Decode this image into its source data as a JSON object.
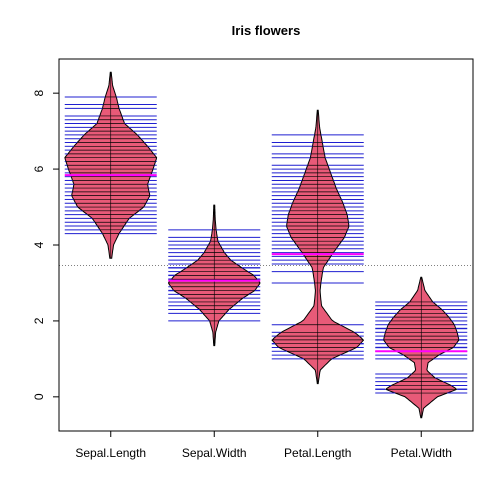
{
  "chart_data": {
    "type": "beanplot",
    "title": "Iris flowers",
    "xlabel": "",
    "ylabel": "",
    "categories": [
      "Sepal.Length",
      "Sepal.Width",
      "Petal.Length",
      "Petal.Width"
    ],
    "ylim": [
      -0.9,
      8.9
    ],
    "yticks": [
      0,
      2,
      4,
      6,
      8
    ],
    "grid": false,
    "legend": "none",
    "overall_mean": 3.46,
    "colors": {
      "bean_fill": "#e85a78",
      "bean_outline": "#000000",
      "beanline": "#1f1fd0",
      "mean_line": "#ff00ff",
      "overall_line": "#808080"
    },
    "beans": [
      {
        "name": "Sepal.Length",
        "mean": 5.84,
        "range": [
          3.65,
          8.55
        ],
        "density": [
          [
            3.65,
            0.02
          ],
          [
            4.0,
            0.06
          ],
          [
            4.3,
            0.18
          ],
          [
            4.7,
            0.4
          ],
          [
            5.0,
            0.72
          ],
          [
            5.3,
            0.85
          ],
          [
            5.6,
            0.8
          ],
          [
            6.0,
            0.92
          ],
          [
            6.3,
            1.0
          ],
          [
            6.6,
            0.8
          ],
          [
            6.9,
            0.58
          ],
          [
            7.2,
            0.3
          ],
          [
            7.6,
            0.18
          ],
          [
            7.9,
            0.12
          ],
          [
            8.2,
            0.04
          ],
          [
            8.55,
            0.01
          ]
        ],
        "values": [
          4.3,
          4.4,
          4.5,
          4.6,
          4.7,
          4.8,
          4.9,
          5.0,
          5.1,
          5.2,
          5.3,
          5.4,
          5.5,
          5.6,
          5.7,
          5.8,
          5.9,
          6.0,
          6.1,
          6.2,
          6.3,
          6.4,
          6.5,
          6.6,
          6.7,
          6.8,
          6.9,
          7.0,
          7.1,
          7.2,
          7.3,
          7.4,
          7.6,
          7.7,
          7.9
        ],
        "counts": [
          1,
          3,
          1,
          4,
          2,
          5,
          6,
          10,
          9,
          4,
          1,
          6,
          7,
          6,
          8,
          7,
          3,
          6,
          6,
          4,
          9,
          7,
          5,
          2,
          8,
          3,
          4,
          1,
          1,
          3,
          1,
          1,
          1,
          4,
          1
        ]
      },
      {
        "name": "Sepal.Width",
        "mean": 3.06,
        "range": [
          1.35,
          5.05
        ],
        "density": [
          [
            1.35,
            0.01
          ],
          [
            1.7,
            0.03
          ],
          [
            2.0,
            0.1
          ],
          [
            2.3,
            0.32
          ],
          [
            2.6,
            0.62
          ],
          [
            2.8,
            0.88
          ],
          [
            3.0,
            1.0
          ],
          [
            3.2,
            0.86
          ],
          [
            3.4,
            0.6
          ],
          [
            3.6,
            0.36
          ],
          [
            3.8,
            0.22
          ],
          [
            4.1,
            0.08
          ],
          [
            4.4,
            0.04
          ],
          [
            4.7,
            0.02
          ],
          [
            5.05,
            0.01
          ]
        ],
        "values": [
          2.0,
          2.2,
          2.3,
          2.4,
          2.5,
          2.6,
          2.7,
          2.8,
          2.9,
          3.0,
          3.1,
          3.2,
          3.3,
          3.4,
          3.5,
          3.6,
          3.7,
          3.8,
          3.9,
          4.0,
          4.1,
          4.2,
          4.4
        ],
        "counts": [
          1,
          3,
          4,
          3,
          8,
          5,
          9,
          14,
          10,
          26,
          11,
          13,
          6,
          12,
          6,
          4,
          3,
          6,
          2,
          1,
          1,
          1,
          1
        ]
      },
      {
        "name": "Petal.Length",
        "mean": 3.76,
        "range": [
          0.35,
          7.55
        ],
        "density": [
          [
            0.35,
            0.01
          ],
          [
            0.7,
            0.05
          ],
          [
            1.0,
            0.3
          ],
          [
            1.3,
            0.85
          ],
          [
            1.5,
            1.0
          ],
          [
            1.7,
            0.8
          ],
          [
            2.0,
            0.32
          ],
          [
            2.4,
            0.08
          ],
          [
            2.8,
            0.05
          ],
          [
            3.1,
            0.08
          ],
          [
            3.4,
            0.12
          ],
          [
            3.8,
            0.34
          ],
          [
            4.2,
            0.58
          ],
          [
            4.5,
            0.68
          ],
          [
            4.8,
            0.64
          ],
          [
            5.1,
            0.55
          ],
          [
            5.5,
            0.4
          ],
          [
            5.9,
            0.28
          ],
          [
            6.3,
            0.16
          ],
          [
            6.7,
            0.1
          ],
          [
            7.1,
            0.04
          ],
          [
            7.55,
            0.01
          ]
        ],
        "values": [
          1.0,
          1.1,
          1.2,
          1.3,
          1.4,
          1.5,
          1.6,
          1.7,
          1.9,
          3.0,
          3.3,
          3.5,
          3.6,
          3.7,
          3.8,
          3.9,
          4.0,
          4.1,
          4.2,
          4.3,
          4.4,
          4.5,
          4.6,
          4.7,
          4.8,
          4.9,
          5.0,
          5.1,
          5.2,
          5.3,
          5.4,
          5.5,
          5.6,
          5.7,
          5.8,
          5.9,
          6.0,
          6.1,
          6.3,
          6.4,
          6.6,
          6.7,
          6.9
        ],
        "counts": [
          1,
          1,
          2,
          7,
          13,
          13,
          7,
          4,
          2,
          1,
          2,
          2,
          1,
          1,
          1,
          3,
          5,
          3,
          4,
          2,
          4,
          8,
          3,
          5,
          4,
          5,
          4,
          8,
          2,
          2,
          2,
          3,
          6,
          3,
          3,
          2,
          2,
          3,
          1,
          1,
          1,
          2,
          1
        ]
      },
      {
        "name": "Petal.Width",
        "mean": 1.2,
        "range": [
          -0.55,
          3.15
        ],
        "density": [
          [
            -0.55,
            0.01
          ],
          [
            -0.3,
            0.05
          ],
          [
            0.0,
            0.35
          ],
          [
            0.2,
            0.78
          ],
          [
            0.3,
            0.65
          ],
          [
            0.5,
            0.3
          ],
          [
            0.7,
            0.12
          ],
          [
            0.9,
            0.15
          ],
          [
            1.1,
            0.38
          ],
          [
            1.3,
            0.7
          ],
          [
            1.5,
            0.82
          ],
          [
            1.7,
            0.78
          ],
          [
            1.9,
            0.72
          ],
          [
            2.1,
            0.6
          ],
          [
            2.3,
            0.45
          ],
          [
            2.5,
            0.25
          ],
          [
            2.8,
            0.08
          ],
          [
            3.15,
            0.01
          ]
        ],
        "values": [
          0.1,
          0.2,
          0.3,
          0.4,
          0.5,
          0.6,
          1.0,
          1.1,
          1.2,
          1.3,
          1.4,
          1.5,
          1.6,
          1.7,
          1.8,
          1.9,
          2.0,
          2.1,
          2.2,
          2.3,
          2.4,
          2.5
        ],
        "counts": [
          5,
          29,
          7,
          7,
          1,
          1,
          7,
          3,
          5,
          13,
          8,
          12,
          4,
          2,
          12,
          5,
          6,
          6,
          3,
          8,
          3,
          3
        ]
      }
    ]
  }
}
